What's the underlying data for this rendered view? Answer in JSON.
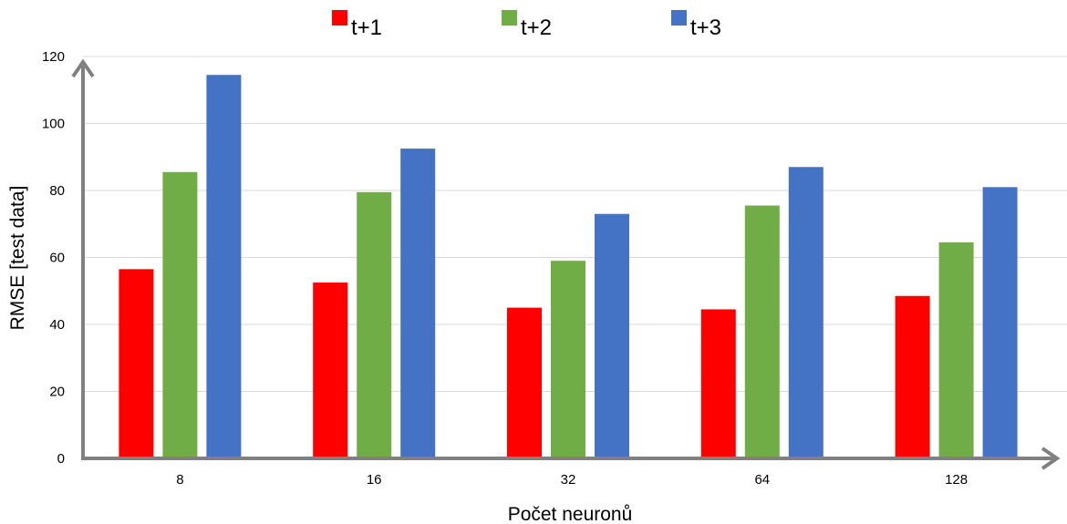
{
  "chart_data": {
    "type": "bar",
    "title": "",
    "xlabel": "Počet neuronů",
    "ylabel": "RMSE [test data]",
    "categories": [
      "8",
      "16",
      "32",
      "64",
      "128"
    ],
    "ylim": [
      0,
      120
    ],
    "yticks": [
      "0",
      "20",
      "40",
      "60",
      "80",
      "100",
      "120"
    ],
    "grid": true,
    "legend_position": "top",
    "series": [
      {
        "name": "t+1",
        "color": "#ff0000",
        "values": [
          56.5,
          52.5,
          45,
          44.5,
          48.5
        ]
      },
      {
        "name": "t+2",
        "color": "#70ad47",
        "values": [
          85.5,
          79.5,
          59,
          75.5,
          64.5
        ]
      },
      {
        "name": "t+3",
        "color": "#4472c4",
        "values": [
          114.5,
          92.5,
          73,
          87,
          81
        ]
      }
    ]
  }
}
